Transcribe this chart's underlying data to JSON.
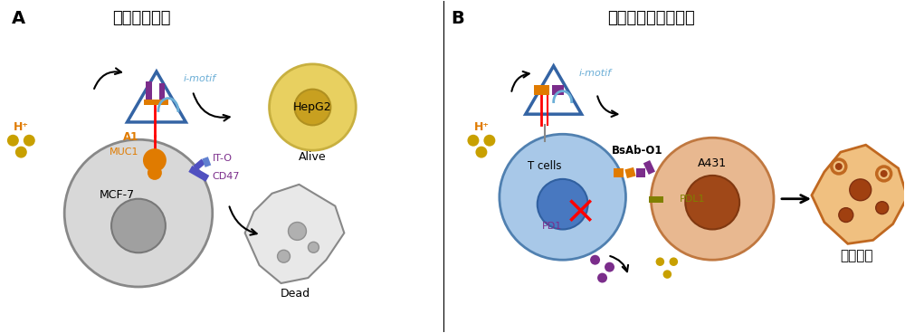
{
  "title_A": "控制细胞死亡",
  "title_B": "控制细胞黏附和激活",
  "label_A": "A",
  "label_B": "B",
  "label_imotif_A": "i-motif",
  "label_imotif_B": "i-motif",
  "label_Hplus_A": "H⁺",
  "label_Hplus_B": "H⁺",
  "label_A1": "A1",
  "label_MUC1": "MUC1",
  "label_ITO": "IT-O",
  "label_CD47": "CD47",
  "label_MCF7": "MCF-7",
  "label_HepG2": "HepG2",
  "label_Alive": "Alive",
  "label_Dead": "Dead",
  "label_Tcells": "T cells",
  "label_PD1": "PD1",
  "label_BsAb": "BsAb-O1",
  "label_A431": "A431",
  "label_PDL1": "PDL1",
  "label_death": "细胞死亡",
  "bg_color": "#ffffff",
  "color_imotif": "#6baed6",
  "color_orange": "#e07b00",
  "color_purple": "#7b2d8b",
  "color_red": "#cc0000",
  "color_dark_yellow": "#c8a000",
  "color_olive": "#808000",
  "color_triangle_border": "#3464a4"
}
